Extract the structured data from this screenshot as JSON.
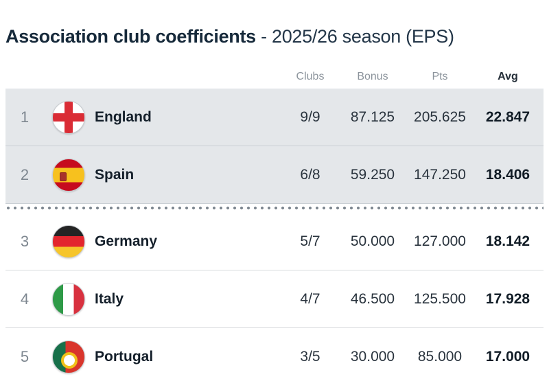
{
  "title": {
    "main": "Association club coefficients",
    "sub": "- 2025/26 season (EPS)"
  },
  "colors": {
    "highlight_row_bg": "#e4e7ea",
    "row_border": "#d8dbde",
    "cutoff_dots": "#7d868f",
    "title_text": "#16293a",
    "header_text": "#8c949c"
  },
  "table": {
    "columns": {
      "clubs": "Clubs",
      "bonus": "Bonus",
      "pts": "Pts",
      "avg": "Avg"
    },
    "rows": [
      {
        "rank": "1",
        "country": "England",
        "flag": "england",
        "clubs": "9/9",
        "bonus": "87.125",
        "pts": "205.625",
        "avg": "22.847",
        "highlighted": true,
        "cutoff_after": false
      },
      {
        "rank": "2",
        "country": "Spain",
        "flag": "spain",
        "clubs": "6/8",
        "bonus": "59.250",
        "pts": "147.250",
        "avg": "18.406",
        "highlighted": true,
        "cutoff_after": true
      },
      {
        "rank": "3",
        "country": "Germany",
        "flag": "germany",
        "clubs": "5/7",
        "bonus": "50.000",
        "pts": "127.000",
        "avg": "18.142",
        "highlighted": false,
        "cutoff_after": false
      },
      {
        "rank": "4",
        "country": "Italy",
        "flag": "italy",
        "clubs": "4/7",
        "bonus": "46.500",
        "pts": "125.500",
        "avg": "17.928",
        "highlighted": false,
        "cutoff_after": false
      },
      {
        "rank": "5",
        "country": "Portugal",
        "flag": "portugal",
        "clubs": "3/5",
        "bonus": "30.000",
        "pts": "85.000",
        "avg": "17.000",
        "highlighted": false,
        "cutoff_after": false
      }
    ]
  }
}
